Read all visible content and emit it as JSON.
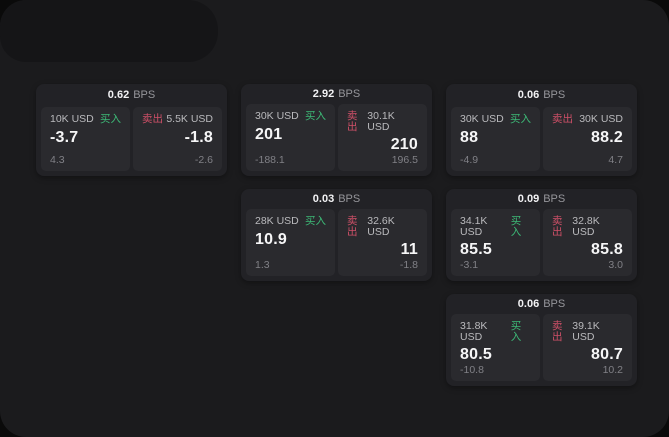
{
  "labels": {
    "bps_unit": "BPS",
    "buy": "买入",
    "sell": "卖出"
  },
  "colors": {
    "window_bg": "#1b1b1d",
    "card_bg": "#222226",
    "panel_bg": "#2a2a2e",
    "buy_green": "#3dba77",
    "sell_red": "#cf5068",
    "primary_text": "#f6f6f7",
    "muted_text": "#808086"
  },
  "cards": [
    {
      "col": 1,
      "row": 1,
      "bps": "0.62",
      "buy": {
        "amount": "10K USD",
        "value": "-3.7",
        "sub": "4.3"
      },
      "sell": {
        "amount": "5.5K USD",
        "value": "-1.8",
        "sub": "-2.6"
      }
    },
    {
      "col": 2,
      "row": 1,
      "bps": "2.92",
      "buy": {
        "amount": "30K USD",
        "value": "201",
        "sub": "-188.1"
      },
      "sell": {
        "amount": "30.1K USD",
        "value": "210",
        "sub": "196.5"
      }
    },
    {
      "col": 3,
      "row": 1,
      "bps": "0.06",
      "buy": {
        "amount": "30K USD",
        "value": "88",
        "sub": "-4.9"
      },
      "sell": {
        "amount": "30K USD",
        "value": "88.2",
        "sub": "4.7"
      }
    },
    {
      "col": 2,
      "row": 2,
      "bps": "0.03",
      "buy": {
        "amount": "28K USD",
        "value": "10.9",
        "sub": "1.3"
      },
      "sell": {
        "amount": "32.6K USD",
        "value": "11",
        "sub": "-1.8"
      }
    },
    {
      "col": 3,
      "row": 2,
      "bps": "0.09",
      "buy": {
        "amount": "34.1K USD",
        "value": "85.5",
        "sub": "-3.1"
      },
      "sell": {
        "amount": "32.8K USD",
        "value": "85.8",
        "sub": "3.0"
      }
    },
    {
      "col": 3,
      "row": 3,
      "bps": "0.06",
      "buy": {
        "amount": "31.8K USD",
        "value": "80.5",
        "sub": "-10.8"
      },
      "sell": {
        "amount": "39.1K USD",
        "value": "80.7",
        "sub": "10.2"
      }
    }
  ]
}
